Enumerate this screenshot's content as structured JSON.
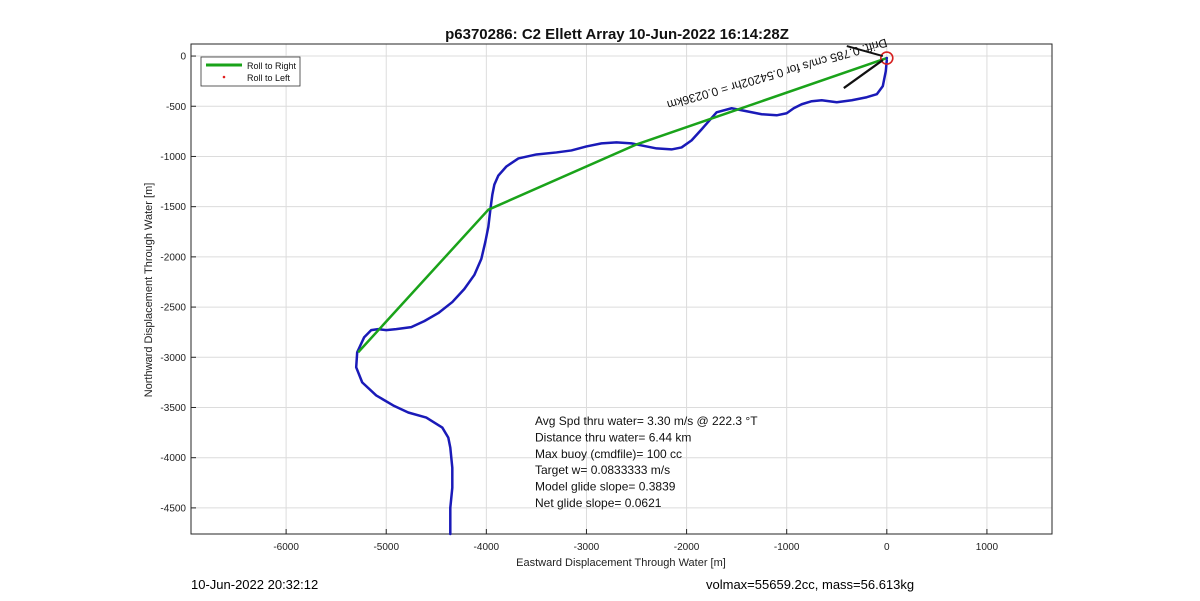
{
  "chart_data": {
    "type": "line",
    "title": "p6370286: C2 Ellett Array 10-Jun-2022 16:14:28Z",
    "xlabel": "Eastward Displacement Through Water [m]",
    "ylabel": "Northward Displacement Through Water [m]",
    "xlim": [
      -6950,
      1650
    ],
    "ylim": [
      -4760,
      120
    ],
    "xticks": [
      -6000,
      -5000,
      -4000,
      -3000,
      -2000,
      -1000,
      0,
      1000
    ],
    "yticks": [
      0,
      -500,
      -1000,
      -1500,
      -2000,
      -2500,
      -3000,
      -3500,
      -4000,
      -4500
    ],
    "grid": true,
    "legend_position": "top-left",
    "legend": [
      {
        "label": "Roll to Right",
        "color": "#1aa31a",
        "marker": "line"
      },
      {
        "label": "Roll to Left",
        "color": "#e02020",
        "marker": "dot"
      }
    ],
    "series": [
      {
        "name": "Roll to Right",
        "color": "#1aa31a",
        "x": [
          -5280,
          -3980,
          -2500,
          0
        ],
        "y": [
          -2950,
          -1530,
          -880,
          -20
        ]
      },
      {
        "color": "#1a1ab8",
        "x": [
          -4360,
          -4360,
          -4340,
          -4340,
          -4360,
          -4380,
          -4440,
          -4600,
          -4780,
          -4930,
          -5100,
          -5240,
          -5300,
          -5290,
          -5220,
          -5150,
          -5080,
          -5000,
          -4900,
          -4750,
          -4620,
          -4480,
          -4340,
          -4220,
          -4120,
          -4050,
          -4010,
          -3980,
          -3960,
          -3940,
          -3920,
          -3880,
          -3800,
          -3680,
          -3500,
          -3300,
          -3150,
          -3000,
          -2850,
          -2700,
          -2550,
          -2450,
          -2300,
          -2150,
          -2050,
          -1950,
          -1850,
          -1700,
          -1550,
          -1450,
          -1350,
          -1250,
          -1100,
          -1000,
          -930,
          -850,
          -750,
          -650,
          -500,
          -350,
          -200,
          -100,
          -40,
          -10,
          0
        ],
        "y": [
          -4760,
          -4500,
          -4300,
          -4100,
          -3900,
          -3800,
          -3700,
          -3600,
          -3550,
          -3480,
          -3380,
          -3250,
          -3100,
          -2950,
          -2800,
          -2730,
          -2720,
          -2730,
          -2720,
          -2700,
          -2640,
          -2560,
          -2450,
          -2320,
          -2180,
          -2020,
          -1850,
          -1700,
          -1530,
          -1380,
          -1280,
          -1190,
          -1100,
          -1020,
          -980,
          -960,
          -940,
          -900,
          -870,
          -860,
          -870,
          -890,
          -920,
          -930,
          -910,
          -840,
          -730,
          -560,
          -520,
          -540,
          -560,
          -580,
          -590,
          -570,
          -520,
          -480,
          -450,
          -440,
          -460,
          -440,
          -410,
          -380,
          -300,
          -150,
          -40
        ]
      }
    ],
    "end_marker": {
      "x": 0,
      "y": -20,
      "color": "#d62020"
    },
    "annotations": [
      {
        "text": "Avg Spd thru water=  3.30 m/s @ 222.3 °T"
      },
      {
        "text": "Distance thru water=  6.44 km"
      },
      {
        "text": "Max buoy (cmdfile)= 100 cc"
      },
      {
        "text": "Target w= 0.0833333 m/s"
      },
      {
        "text": "Model glide slope= 0.3839"
      },
      {
        "text": "Net glide slope= 0.0621"
      }
    ],
    "rotated_label": {
      "text": "Drift: 0.785 cm/s for 0.54202hr = 0.0236km",
      "rotation_deg": 180
    }
  },
  "footer": {
    "left": "10-Jun-2022 20:32:12",
    "right": "volmax=55659.2cc, mass=56.613kg"
  }
}
